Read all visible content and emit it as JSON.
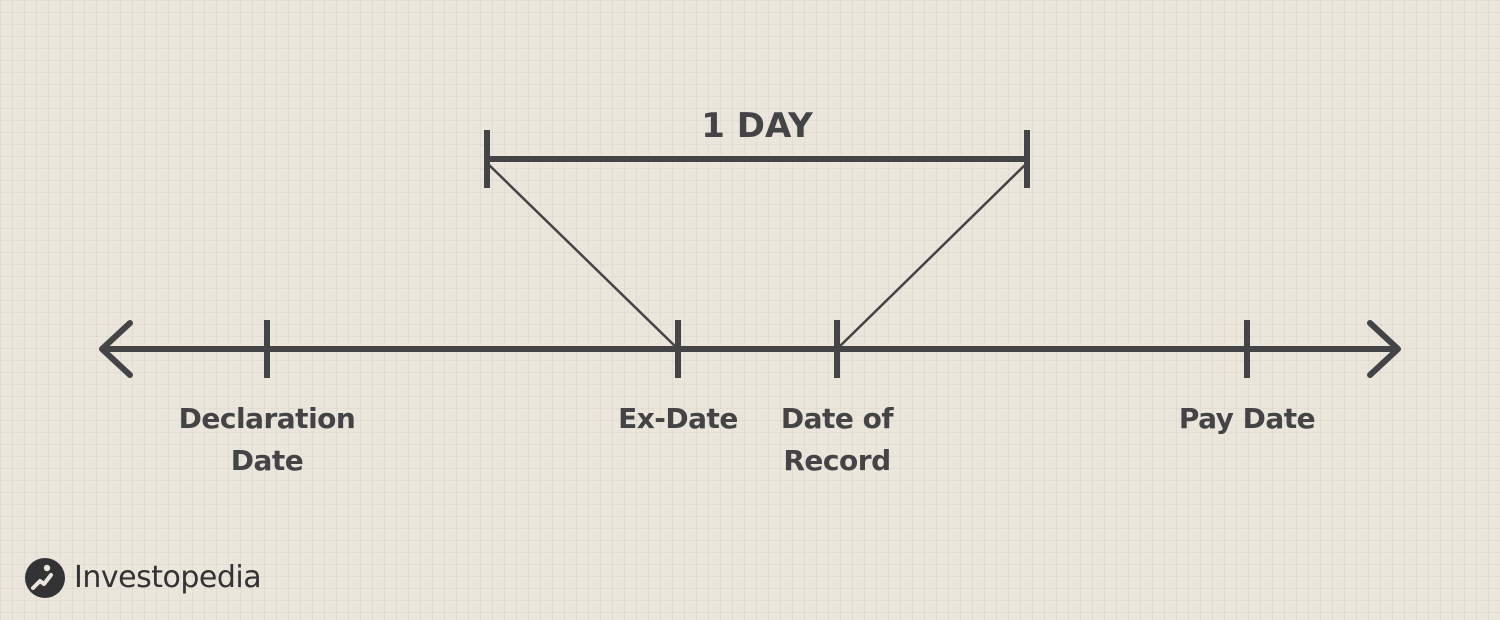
{
  "diagram": {
    "interval_label": "1 DAY",
    "markers": [
      {
        "id": "declaration",
        "line1": "Declaration",
        "line2": "Date"
      },
      {
        "id": "ex",
        "line1": "Ex-Date",
        "line2": ""
      },
      {
        "id": "record",
        "line1": "Date of",
        "line2": "Record"
      },
      {
        "id": "pay",
        "line1": "Pay Date",
        "line2": ""
      }
    ]
  },
  "brand": {
    "name": "Investopedia",
    "logo_icon": "investopedia-logo-icon"
  },
  "colors": {
    "background": "#ebe6dc",
    "line": "#444446",
    "text": "#444446"
  }
}
